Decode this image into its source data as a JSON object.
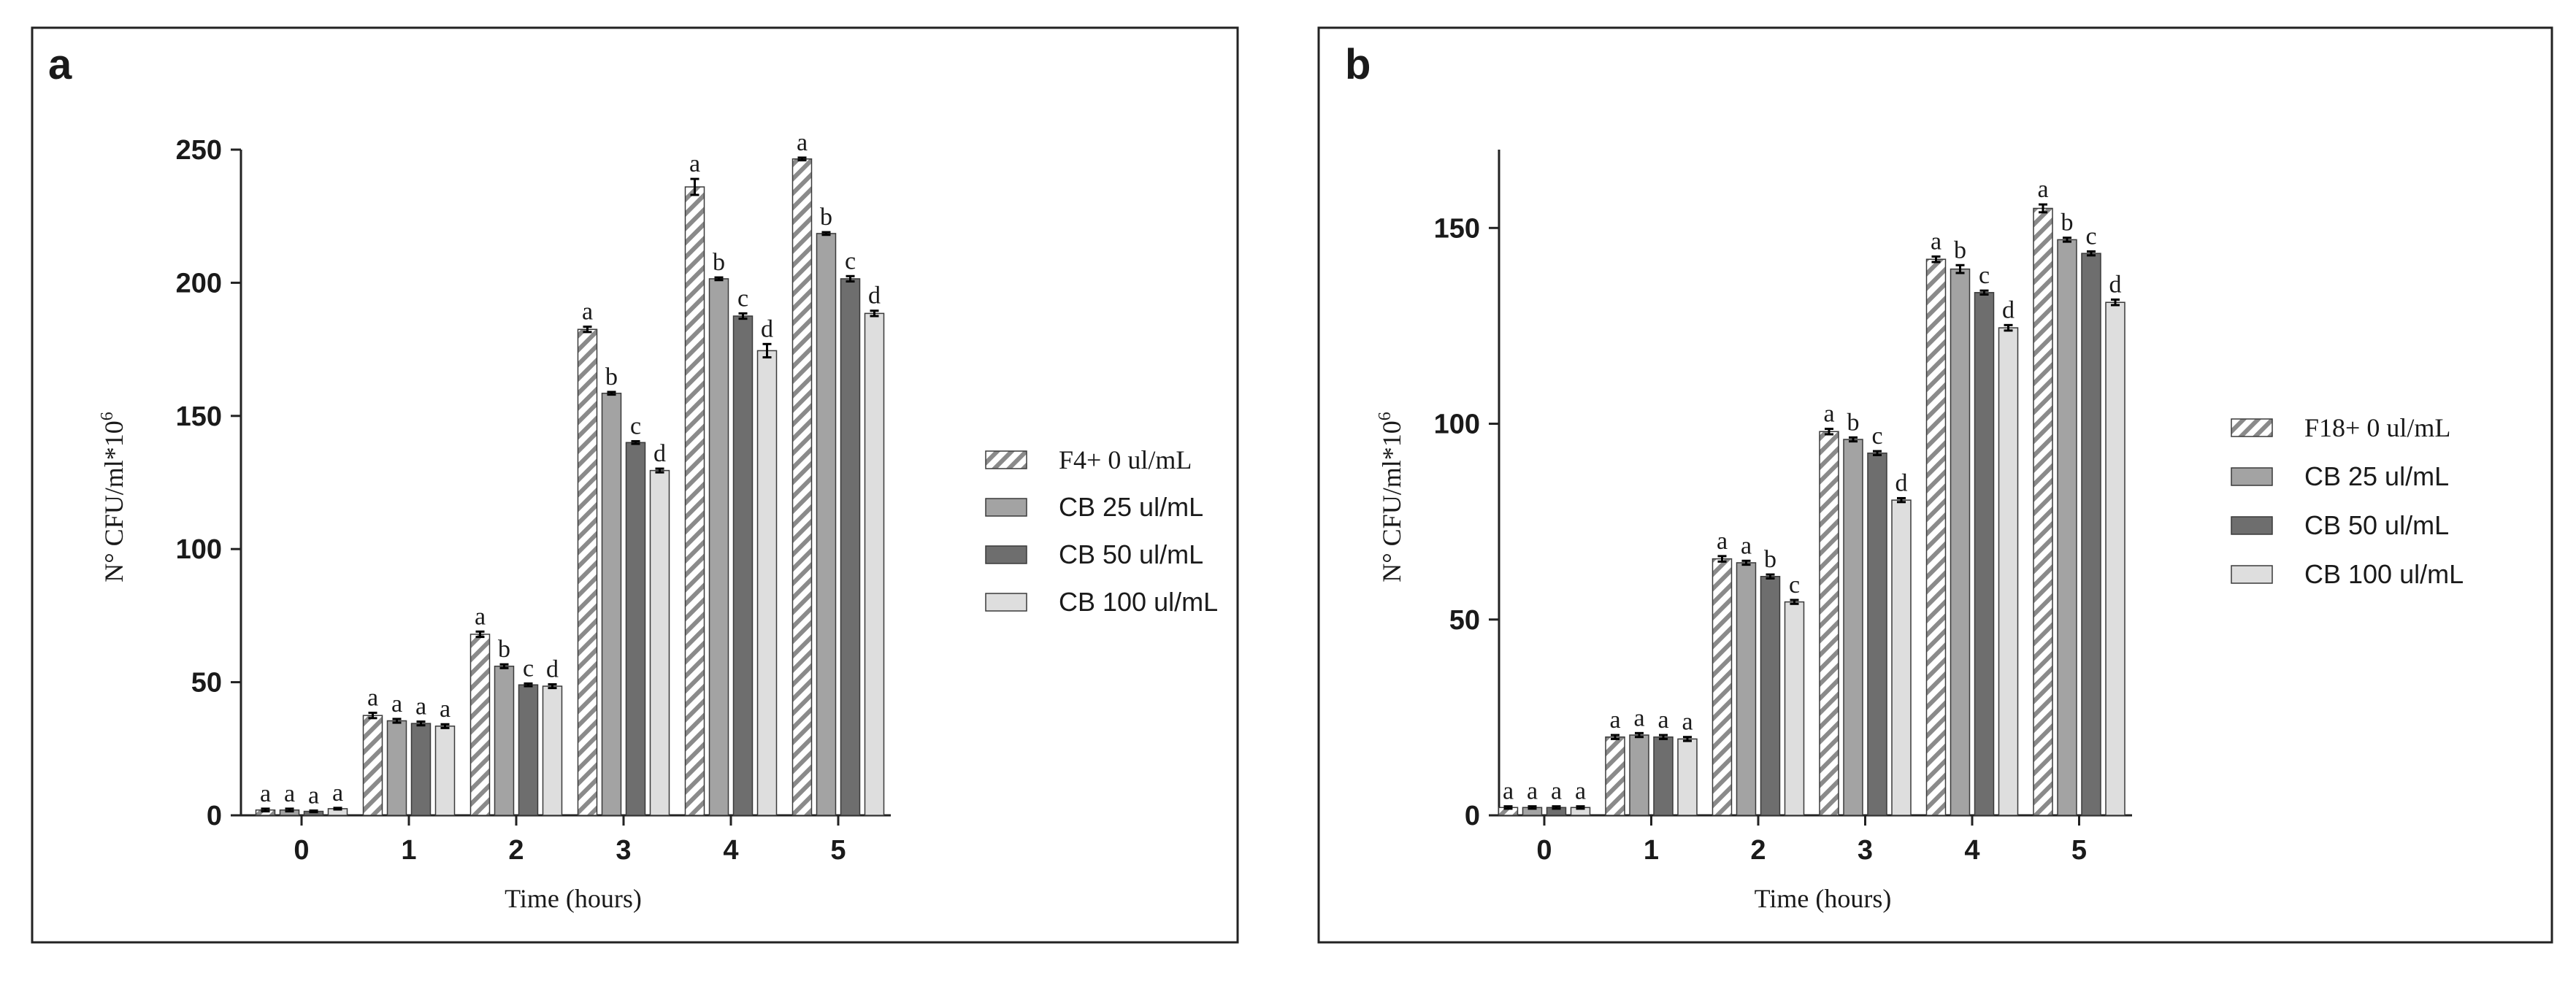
{
  "chart_data": [
    {
      "type": "bar",
      "panel_label": "a",
      "xlabel": "Time (hours)",
      "ylabel": "N° CFU/ml*10",
      "ylabel_sup": "6",
      "ylim": [
        0,
        250
      ],
      "yticks": [
        0,
        50,
        100,
        150,
        200,
        250
      ],
      "categories": [
        "0",
        "1",
        "2",
        "3",
        "4",
        "5"
      ],
      "legend_position": "right",
      "series": [
        {
          "name": "F4+ 0 ul/mL",
          "pattern": "hatch",
          "color": "#d4d4d4",
          "values": [
            2,
            37.5,
            68,
            182.5,
            236,
            246.5
          ],
          "errors": [
            0.5,
            1,
            1,
            1,
            3,
            0.5
          ],
          "letters": [
            "a",
            "a",
            "a",
            "a",
            "a",
            "a"
          ]
        },
        {
          "name": "CB 25 ul/mL",
          "pattern": "solid",
          "color": "#a3a3a3",
          "values": [
            2,
            35.5,
            56,
            158.5,
            201.5,
            218.5
          ],
          "errors": [
            0.5,
            0.7,
            0.7,
            0.5,
            0.5,
            0.5
          ],
          "letters": [
            "a",
            "a",
            "b",
            "b",
            "b",
            "b"
          ]
        },
        {
          "name": "CB 50 ul/mL",
          "pattern": "solid",
          "color": "#6e6e6e",
          "values": [
            1.5,
            34.5,
            49,
            140,
            187.5,
            201.5
          ],
          "errors": [
            0.3,
            0.7,
            0.5,
            0.5,
            1,
            1
          ],
          "letters": [
            "a",
            "a",
            "c",
            "c",
            "c",
            "c"
          ]
        },
        {
          "name": "CB 100 ul/mL",
          "pattern": "solid",
          "color": "#dedede",
          "values": [
            2.5,
            33.5,
            48.5,
            129.5,
            174.5,
            188.5
          ],
          "errors": [
            0.3,
            0.7,
            0.7,
            0.7,
            2.5,
            1
          ],
          "letters": [
            "a",
            "a",
            "d",
            "d",
            "d",
            "d"
          ]
        }
      ]
    },
    {
      "type": "bar",
      "panel_label": "b",
      "xlabel": "Time (hours)",
      "ylabel": "N° CFU/ml*10",
      "ylabel_sup": "6",
      "ylim": [
        0,
        170
      ],
      "yticks": [
        0,
        50,
        100,
        150
      ],
      "categories": [
        "0",
        "1",
        "2",
        "3",
        "4",
        "5"
      ],
      "legend_position": "right",
      "series": [
        {
          "name": "F18+ 0 ul/mL",
          "pattern": "hatch",
          "color": "#d4d4d4",
          "values": [
            2,
            20,
            65.5,
            98,
            142,
            155
          ],
          "errors": [
            0.3,
            0.5,
            0.7,
            0.7,
            0.7,
            1
          ],
          "letters": [
            "a",
            "a",
            "a",
            "a",
            "a",
            "a"
          ]
        },
        {
          "name": "CB 25 ul/mL",
          "pattern": "solid",
          "color": "#a3a3a3",
          "values": [
            2,
            20.5,
            64.5,
            96,
            139.5,
            147
          ],
          "errors": [
            0.3,
            0.5,
            0.5,
            0.5,
            1,
            0.5
          ],
          "letters": [
            "a",
            "a",
            "a",
            "b",
            "b",
            "b"
          ]
        },
        {
          "name": "CB 50 ul/mL",
          "pattern": "solid",
          "color": "#6e6e6e",
          "values": [
            2,
            20,
            61,
            92.5,
            133.5,
            143.5
          ],
          "errors": [
            0.3,
            0.5,
            0.5,
            0.5,
            0.5,
            0.5
          ],
          "letters": [
            "a",
            "a",
            "b",
            "c",
            "c",
            "c"
          ]
        },
        {
          "name": "CB 100 ul/mL",
          "pattern": "solid",
          "color": "#dedede",
          "values": [
            2,
            19.5,
            54.5,
            80.5,
            124.5,
            131
          ],
          "errors": [
            0.3,
            0.5,
            0.5,
            0.5,
            0.7,
            0.7
          ],
          "letters": [
            "a",
            "a",
            "c",
            "d",
            "d",
            "d"
          ]
        }
      ]
    }
  ]
}
